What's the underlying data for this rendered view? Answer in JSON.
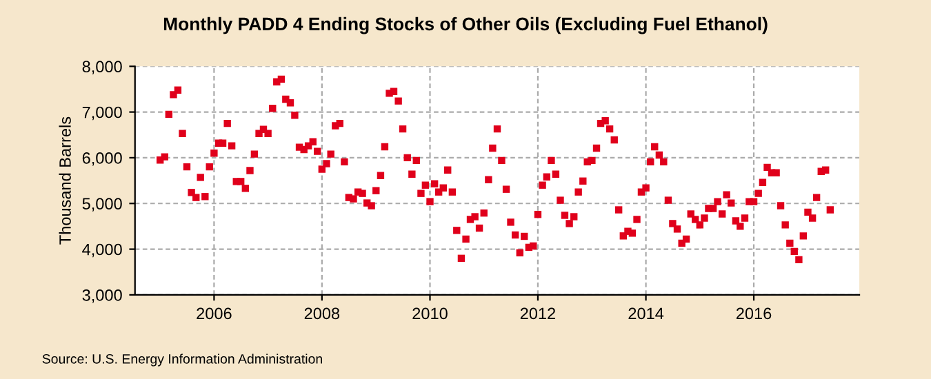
{
  "chart_data": {
    "type": "scatter",
    "title": "Monthly PADD 4 Ending Stocks of Other Oils (Excluding Fuel Ethanol)",
    "ylabel": "Thousand Barrels",
    "annotations": [
      "Source: U.S. Energy Information Administration"
    ],
    "x": [
      "2005-01",
      "2005-02",
      "2005-03",
      "2005-04",
      "2005-05",
      "2005-06",
      "2005-07",
      "2005-08",
      "2005-09",
      "2005-10",
      "2005-11",
      "2005-12",
      "2006-01",
      "2006-02",
      "2006-03",
      "2006-04",
      "2006-05",
      "2006-06",
      "2006-07",
      "2006-08",
      "2006-09",
      "2006-10",
      "2006-11",
      "2006-12",
      "2007-01",
      "2007-02",
      "2007-03",
      "2007-04",
      "2007-05",
      "2007-06",
      "2007-07",
      "2007-08",
      "2007-09",
      "2007-10",
      "2007-11",
      "2007-12",
      "2008-01",
      "2008-02",
      "2008-03",
      "2008-04",
      "2008-05",
      "2008-06",
      "2008-07",
      "2008-08",
      "2008-09",
      "2008-10",
      "2008-11",
      "2008-12",
      "2009-01",
      "2009-02",
      "2009-03",
      "2009-04",
      "2009-05",
      "2009-06",
      "2009-07",
      "2009-08",
      "2009-09",
      "2009-10",
      "2009-11",
      "2009-12",
      "2010-01",
      "2010-02",
      "2010-03",
      "2010-04",
      "2010-05",
      "2010-06",
      "2010-07",
      "2010-08",
      "2010-09",
      "2010-10",
      "2010-11",
      "2010-12",
      "2011-01",
      "2011-02",
      "2011-03",
      "2011-04",
      "2011-05",
      "2011-06",
      "2011-07",
      "2011-08",
      "2011-09",
      "2011-10",
      "2011-11",
      "2011-12",
      "2012-01",
      "2012-02",
      "2012-03",
      "2012-04",
      "2012-05",
      "2012-06",
      "2012-07",
      "2012-08",
      "2012-09",
      "2012-10",
      "2012-11",
      "2012-12",
      "2013-01",
      "2013-02",
      "2013-03",
      "2013-04",
      "2013-05",
      "2013-06",
      "2013-07",
      "2013-08",
      "2013-09",
      "2013-10",
      "2013-11",
      "2013-12",
      "2014-01",
      "2014-02",
      "2014-03",
      "2014-04",
      "2014-05",
      "2014-06",
      "2014-07",
      "2014-08",
      "2014-09",
      "2014-10",
      "2014-11",
      "2014-12",
      "2015-01",
      "2015-02",
      "2015-03",
      "2015-04",
      "2015-05",
      "2015-06",
      "2015-07",
      "2015-08",
      "2015-09",
      "2015-10",
      "2015-11",
      "2015-12",
      "2016-01",
      "2016-02",
      "2016-03",
      "2016-04",
      "2016-05",
      "2016-06",
      "2016-07",
      "2016-08",
      "2016-09",
      "2016-10",
      "2016-11",
      "2016-12",
      "2017-01",
      "2017-02",
      "2017-03",
      "2017-04",
      "2017-05",
      "2017-06"
    ],
    "series": [
      {
        "color": "#e0001b",
        "values": [
          5950,
          6020,
          6950,
          7380,
          7480,
          6530,
          5800,
          5240,
          5130,
          5570,
          5150,
          5800,
          6100,
          6320,
          6320,
          6750,
          6260,
          5480,
          5480,
          5330,
          5720,
          6080,
          6530,
          6620,
          6530,
          7080,
          7660,
          7720,
          7280,
          7200,
          6930,
          6230,
          6180,
          6260,
          6350,
          6140,
          5750,
          5870,
          6080,
          6700,
          6750,
          5910,
          5130,
          5100,
          5250,
          5220,
          5010,
          4950,
          5280,
          5610,
          6240,
          7410,
          7450,
          7240,
          6630,
          6000,
          5640,
          5940,
          5220,
          5400,
          5040,
          5430,
          5250,
          5340,
          5730,
          5250,
          4410,
          3800,
          4220,
          4650,
          4710,
          4460,
          4790,
          5520,
          6210,
          6630,
          5940,
          5310,
          4590,
          4310,
          3920,
          4280,
          4040,
          4070,
          4760,
          5400,
          5580,
          5940,
          5640,
          5070,
          4740,
          4560,
          4710,
          5250,
          5490,
          5910,
          5940,
          6210,
          6750,
          6810,
          6630,
          6390,
          4860,
          4290,
          4390,
          4350,
          4650,
          5250,
          5340,
          5910,
          6240,
          6060,
          5910,
          5070,
          4560,
          4440,
          4130,
          4220,
          4770,
          4650,
          4530,
          4680,
          4890,
          4890,
          5040,
          4770,
          5190,
          5010,
          4620,
          4500,
          4680,
          5040,
          5040,
          5220,
          5460,
          5790,
          5670,
          5670,
          4950,
          4530,
          4130,
          3950,
          3770,
          4290,
          4810,
          4680,
          5130,
          5700,
          5730,
          4860
        ]
      }
    ],
    "xlim": [
      "2004-07-15",
      "2017-12-15"
    ],
    "xticks": [
      "2006",
      "2008",
      "2010",
      "2012",
      "2014",
      "2016"
    ],
    "ylim": [
      3000,
      8000
    ],
    "yticks": [
      {
        "value": 3000,
        "label": "3,000"
      },
      {
        "value": 4000,
        "label": "4,000"
      },
      {
        "value": 5000,
        "label": "5,000"
      },
      {
        "value": 6000,
        "label": "6,000"
      },
      {
        "value": 7000,
        "label": "7,000"
      },
      {
        "value": 8000,
        "label": "8,000"
      }
    ],
    "grid": true,
    "marker": "square"
  }
}
